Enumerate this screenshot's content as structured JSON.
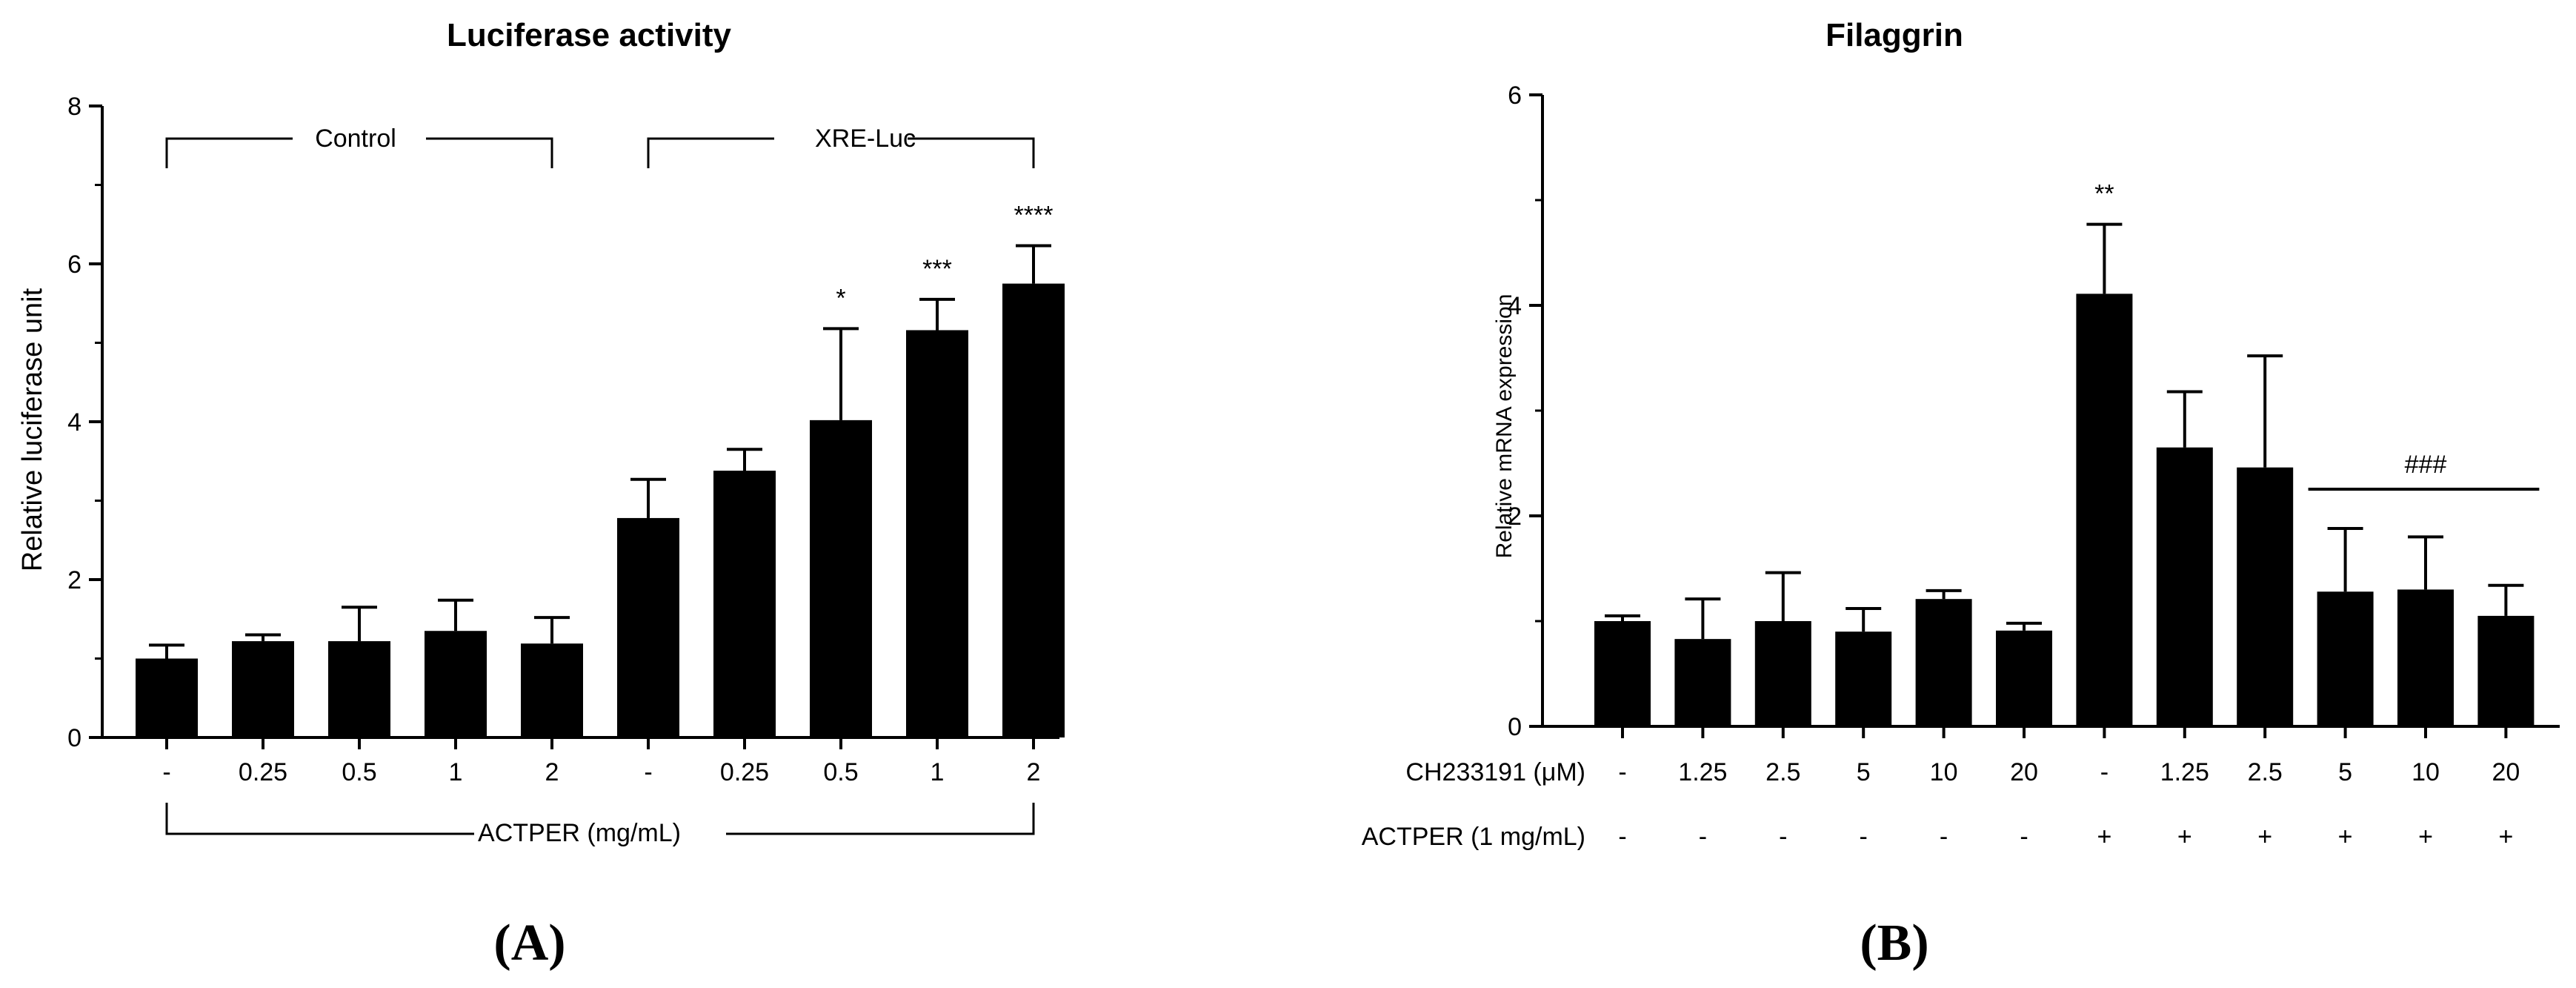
{
  "chart_data": [
    {
      "type": "bar",
      "panel_label": "(A)",
      "title": "Luciferase activity",
      "ylabel": "Relative luciferase unit",
      "xlabel": "ACTPER (mg/mL)",
      "ylim": [
        0,
        8
      ],
      "yticks": [
        "0",
        "2",
        "4",
        "6",
        "8"
      ],
      "categories": [
        "-",
        "0.25",
        "0.5",
        "1",
        "2",
        "-",
        "0.25",
        "0.5",
        "1",
        "2"
      ],
      "values": [
        1.0,
        1.22,
        1.22,
        1.35,
        1.19,
        2.78,
        3.38,
        4.02,
        5.16,
        5.75
      ],
      "errors": [
        0.17,
        0.08,
        0.43,
        0.39,
        0.33,
        0.49,
        0.27,
        1.16,
        0.39,
        0.48
      ],
      "annotations": [
        "",
        "",
        "",
        "",
        "",
        "",
        "",
        "*",
        "***",
        "****"
      ],
      "groups": [
        {
          "label": "Control",
          "start": 0,
          "end": 4
        },
        {
          "label": "XRE-Luc",
          "start": 5,
          "end": 9
        }
      ]
    },
    {
      "type": "bar",
      "panel_label": "(B)",
      "title": "Filaggrin",
      "ylabel": "Relative mRNA expression",
      "ylim": [
        0,
        6
      ],
      "yticks": [
        "0",
        "2",
        "4",
        "6"
      ],
      "row_labels": [
        "CH233191 (μM)",
        "ACTPER (1 mg/mL)"
      ],
      "categories": [
        "-",
        "1.25",
        "2.5",
        "5",
        "10",
        "20",
        "-",
        "1.25",
        "2.5",
        "5",
        "10",
        "20"
      ],
      "actper": [
        "-",
        "-",
        "-",
        "-",
        "-",
        "-",
        "+",
        "+",
        "+",
        "+",
        "+",
        "+"
      ],
      "values": [
        1.0,
        0.83,
        1.0,
        0.9,
        1.21,
        0.91,
        4.11,
        2.65,
        2.46,
        1.28,
        1.3,
        1.05
      ],
      "errors": [
        0.05,
        0.38,
        0.46,
        0.22,
        0.08,
        0.07,
        0.66,
        0.53,
        1.06,
        0.6,
        0.5,
        0.29
      ],
      "annotations": [
        "",
        "",
        "",
        "",
        "",
        "",
        "**",
        "",
        "",
        "",
        "",
        ""
      ],
      "group_annotation": {
        "label": "###",
        "start": 9,
        "end": 11
      }
    }
  ]
}
